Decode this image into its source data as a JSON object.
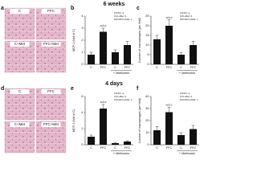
{
  "sections": [
    {
      "title": "6 weeks"
    },
    {
      "title": "4 days"
    }
  ],
  "image_panels": [
    {
      "letter": "a",
      "labels": [
        "C",
        "FFC",
        "C+Met",
        "FFC+Met"
      ]
    },
    {
      "letter": "d",
      "labels": [
        "C",
        "FFC",
        "C+Met",
        "FFC+Met"
      ]
    }
  ],
  "chart_data": [
    {
      "type": "bar",
      "letter": "b",
      "ylabel": "MCP-1 (fold of C)",
      "categories": [
        "C",
        "FFC",
        "C",
        "FFC"
      ],
      "group_label": "+ Metformin",
      "values": [
        0.8,
        2.7,
        1.0,
        1.6
      ],
      "errors": [
        0.2,
        0.3,
        0.2,
        0.3
      ],
      "annotations": [
        null,
        "a,b,c",
        null,
        null
      ],
      "legend": [
        "C/FFC: a",
        "C/C+Met: b",
        "FFC/FFC+Met: c"
      ],
      "color": "#111111",
      "ylim": [
        0,
        4
      ],
      "yticks": [
        0,
        1,
        2,
        3,
        4
      ]
    },
    {
      "type": "bar",
      "letter": "c",
      "ylabel": "Number of macrophages (per field)",
      "categories": [
        "C",
        "FFC",
        "C",
        "FFC"
      ],
      "group_label": "+ Metformin",
      "values": [
        13,
        20,
        5,
        10
      ],
      "errors": [
        2,
        3,
        1,
        2
      ],
      "annotations": [
        null,
        "a,b,c",
        null,
        null
      ],
      "legend": [
        "C/FFC: a",
        "C/C+Met: b",
        "FFC/FFC+Met: c"
      ],
      "color": "#111111",
      "ylim": [
        0,
        25
      ],
      "yticks": [
        0,
        5,
        10,
        15,
        20,
        25
      ]
    },
    {
      "type": "bar",
      "letter": "e",
      "ylabel": "MCP-1 (fold of C)",
      "categories": [
        "C",
        "FFC",
        "C",
        "FFC"
      ],
      "group_label": "+ Metformin",
      "values": [
        1.0,
        4.5,
        0.2,
        0.4
      ],
      "errors": [
        0.2,
        0.5,
        0.1,
        0.1
      ],
      "annotations": [
        null,
        "a,b,c",
        null,
        null
      ],
      "legend": [
        "C/FFC: a",
        "C/C+Met: b",
        "FFC/FFC+Met: c"
      ],
      "color": "#111111",
      "ylim": [
        0,
        6
      ],
      "yticks": [
        0,
        2,
        4,
        6
      ]
    },
    {
      "type": "bar",
      "letter": "f",
      "ylabel": "Number of macrophages (per field)",
      "categories": [
        "C",
        "FFC",
        "C",
        "FFC"
      ],
      "group_label": "+ Metformin",
      "values": [
        12,
        27,
        8,
        13
      ],
      "errors": [
        3,
        4,
        2,
        3
      ],
      "annotations": [
        null,
        "a,b,c",
        null,
        null
      ],
      "legend": [
        "C/FFC: a",
        "C/C+Met: b",
        "FFC/FFC+Met: c"
      ],
      "color": "#111111",
      "ylim": [
        0,
        40
      ],
      "yticks": [
        0,
        10,
        20,
        30,
        40
      ]
    }
  ]
}
